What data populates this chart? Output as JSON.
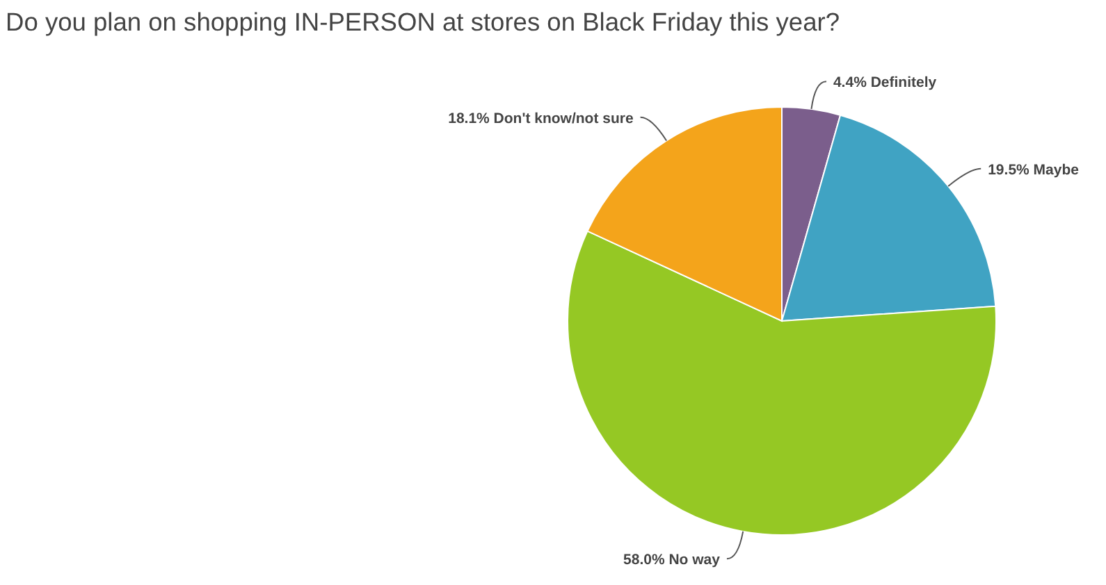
{
  "chart_data": {
    "type": "pie",
    "title": "Do you plan on shopping IN-PERSON at stores on Black Friday this year?",
    "categories": [
      "Definitely",
      "Maybe",
      "No way",
      "Don't know/not sure"
    ],
    "values": [
      4.4,
      19.5,
      58.0,
      18.1
    ],
    "colors": [
      "#7b5e8c",
      "#40a3c3",
      "#95c824",
      "#f4a41b"
    ],
    "value_labels": [
      "4.4%",
      "19.5%",
      "58.0%",
      "18.1%"
    ]
  }
}
